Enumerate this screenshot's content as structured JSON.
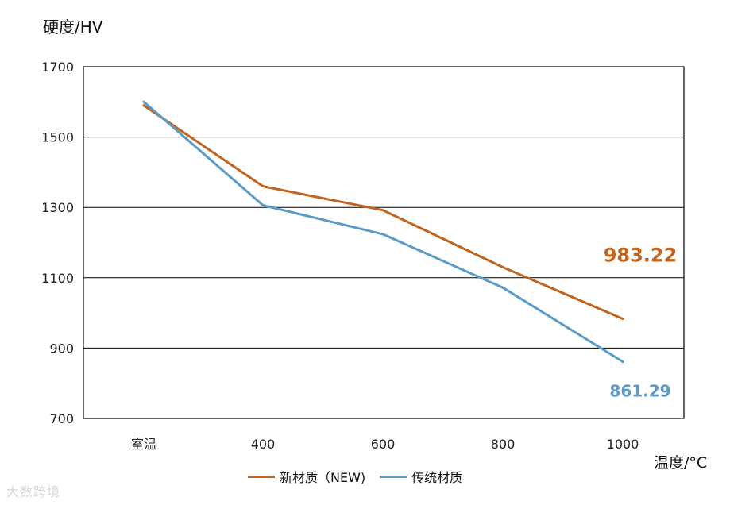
{
  "chart_data": {
    "type": "line",
    "categories": [
      "室温",
      "400",
      "600",
      "800",
      "1000"
    ],
    "ylabel": "硬度/HV",
    "xlabel": "温度/°C",
    "ylim": [
      700,
      1700
    ],
    "yticks": [
      700,
      900,
      1100,
      1300,
      1500,
      1700
    ],
    "grid": "horizontal",
    "legend_position": "bottom",
    "series": [
      {
        "name": "新材质（NEW)",
        "color": "#C0651F",
        "values": [
          1590,
          1360,
          1292,
          1130,
          983.22
        ]
      },
      {
        "name": "传统材质",
        "color": "#5B9BC8",
        "values": [
          1600,
          1306,
          1224,
          1072,
          861.29
        ]
      }
    ],
    "annotations": [
      {
        "text": "983.22",
        "series": 0,
        "point": 4,
        "color": "#C0651F"
      },
      {
        "text": "861.29",
        "series": 1,
        "point": 4,
        "color": "#5B9BC8"
      }
    ]
  },
  "watermark": "大数跨境"
}
